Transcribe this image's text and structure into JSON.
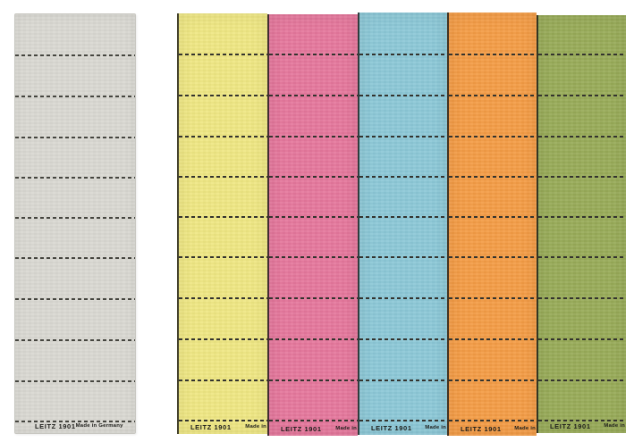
{
  "background": "#ffffff",
  "branding": {
    "brand": "LEITZ",
    "model": "1901",
    "made_in_full": "Made in Germany",
    "made_in_clipped": "Made in"
  },
  "blank_strip": {
    "color_name": "grey",
    "color": "#d9d8d2",
    "rows": 10,
    "footer_left": "LEITZ 1901",
    "footer_right": "Made in Germany"
  },
  "colored_sheet": {
    "rows": 10,
    "dash_color": "#33332e",
    "columns": [
      {
        "color_name": "yellow",
        "color": "#efe783",
        "footer_left": "LEITZ 1901",
        "footer_right": "Made in"
      },
      {
        "color_name": "pink",
        "color": "#e5779c",
        "footer_left": "LEITZ 1901",
        "footer_right": "Made in"
      },
      {
        "color_name": "blue",
        "color": "#8cc8d7",
        "footer_left": "LEITZ 1901",
        "footer_right": "Made in"
      },
      {
        "color_name": "orange",
        "color": "#f49c45",
        "footer_left": "LEITZ 1901",
        "footer_right": "Made in"
      },
      {
        "color_name": "green",
        "color": "#98ab58",
        "footer_left": "LEITZ 1901",
        "footer_right": "Made in"
      }
    ]
  }
}
